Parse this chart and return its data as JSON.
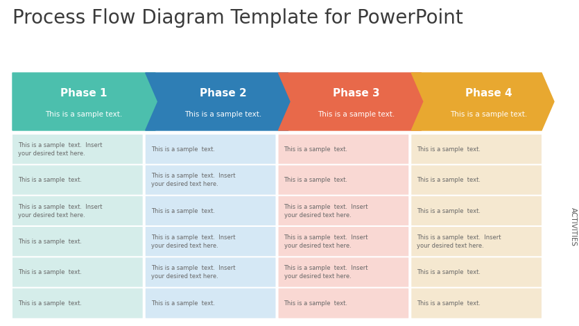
{
  "title": "Process Flow Diagram Template for PowerPoint",
  "title_color": "#3a3a3a",
  "title_fontsize": 20,
  "background_color": "#ffffff",
  "phases": [
    "Phase 1",
    "Phase 2",
    "Phase 3",
    "Phase 4"
  ],
  "phase_subtitles": [
    "This is a sample text.",
    "This is a sample text.",
    "This is a sample text.",
    "This is a sample text."
  ],
  "chevron_colors": [
    "#4cbfad",
    "#2e7eb5",
    "#e8694a",
    "#e8a830"
  ],
  "cell_bg_colors": [
    "#d5edea",
    "#d5e8f5",
    "#f9d8d3",
    "#f5e8d0"
  ],
  "activities_label": "ACTIVITIES",
  "rows": 6,
  "cell_texts": [
    [
      "This is a sample  text.  Insert\nyour desired text here.",
      "This is a sample  text.",
      "This is a sample  text.",
      "This is a sample  text."
    ],
    [
      "This is a sample  text.",
      "This is a sample  text.  Insert\nyour desired text here.",
      "This is a sample  text.",
      "This is a sample  text."
    ],
    [
      "This is a sample  text.  Insert\nyour desired text here.",
      "This is a sample  text.",
      "This is a sample  text.  Insert\nyour desired text here.",
      "This is a sample  text."
    ],
    [
      "This is a sample  text.",
      "This is a sample  text.  Insert\nyour desired text here.",
      "This is a sample  text.  Insert\nyour desired text here.",
      "This is a sample  text.  Insert\nyour desired text here."
    ],
    [
      "This is a sample  text.",
      "This is a sample  text.  Insert\nyour desired text here.",
      "This is a sample  text.  Insert\nyour desired text here.",
      "This is a sample  text."
    ],
    [
      "This is a sample  text.",
      "This is a sample  text.",
      "This is a sample  text.",
      "This is a sample  text."
    ]
  ],
  "fig_width": 8.35,
  "fig_height": 4.7,
  "dpi": 100
}
